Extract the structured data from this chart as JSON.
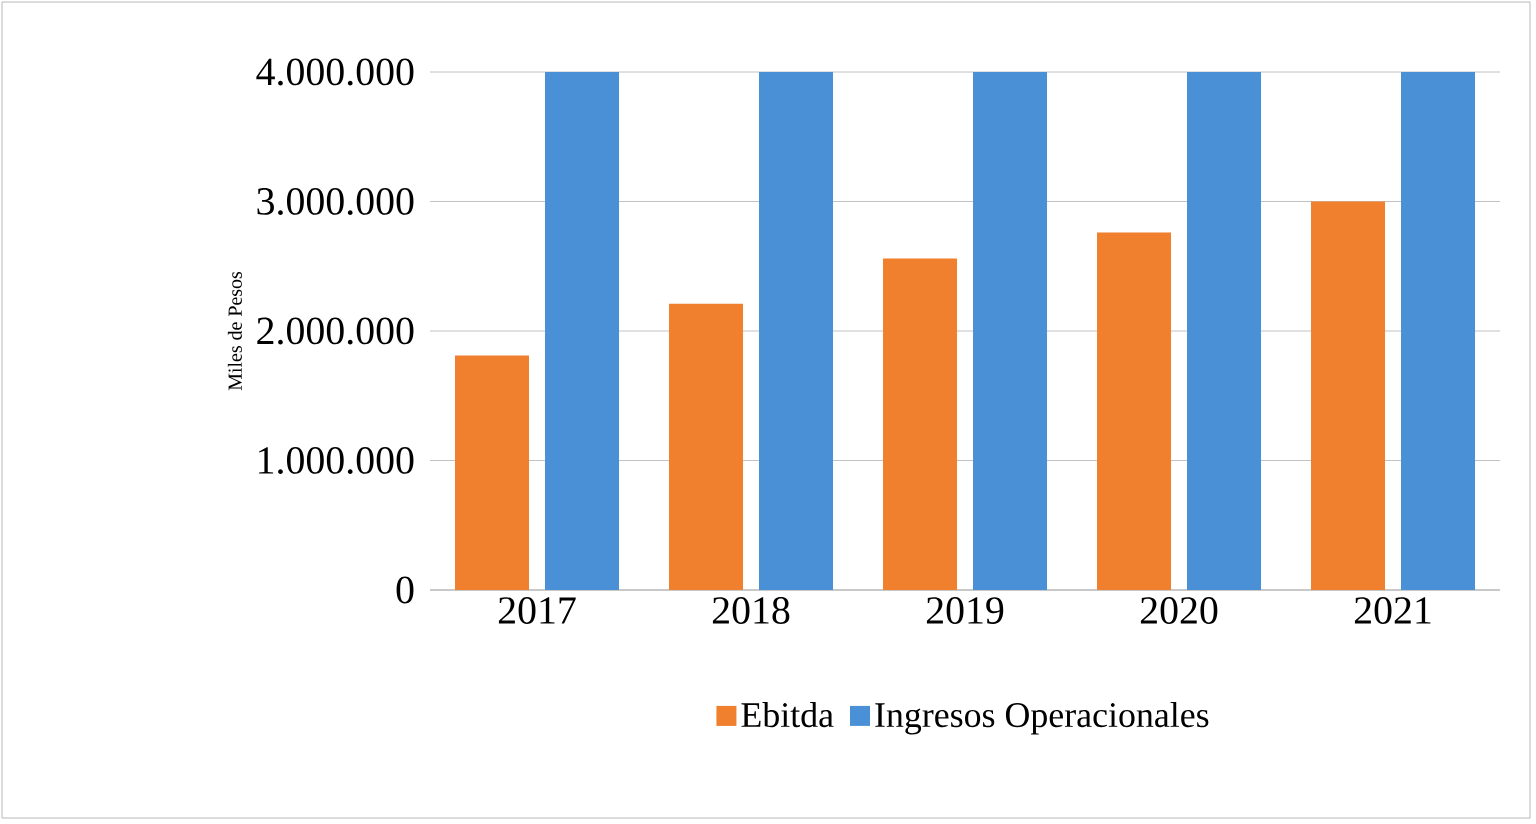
{
  "chart_data": {
    "type": "bar",
    "ylabel": "Miles de Pesos",
    "categories": [
      "2017",
      "2018",
      "2019",
      "2020",
      "2021"
    ],
    "series": [
      {
        "name": "Ebitda",
        "color": "#f07f2e",
        "values": [
          1810000,
          2210000,
          2560000,
          2760000,
          3000000
        ]
      },
      {
        "name": "Ingresos Operacionales",
        "color": "#4a90d6",
        "values": [
          4000000,
          4000000,
          4000000,
          4000000,
          4000000
        ]
      }
    ],
    "ylim": [
      0,
      4000000
    ],
    "yticks": [
      {
        "value": 0,
        "label": "0"
      },
      {
        "value": 1000000,
        "label": "1.000.000"
      },
      {
        "value": 2000000,
        "label": "2.000.000"
      },
      {
        "value": 3000000,
        "label": "3.000.000"
      },
      {
        "value": 4000000,
        "label": "4.000.000"
      }
    ],
    "grid": "y",
    "legend": "bottom"
  }
}
